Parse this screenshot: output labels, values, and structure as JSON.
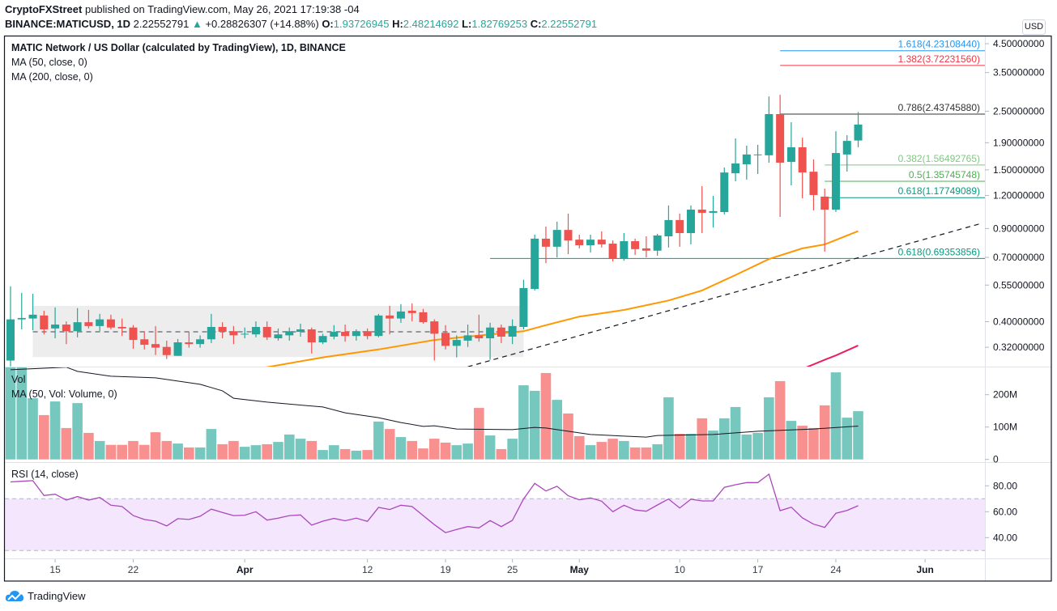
{
  "header": {
    "author": "CryptoFXStreet",
    "published": " published on TradingView.com, May 26, 2021 17:19:38 -04",
    "symbol": "BINANCE:MATICUSD, 1D",
    "last": "2.22552791",
    "change_icon": "triangle-up-icon",
    "change": "+0.28826307 (+14.88%)",
    "o_label": "O:",
    "o": "1.93726945",
    "h_label": "H:",
    "h": "2.48214692",
    "l_label": "L:",
    "l": "1.82769253",
    "c_label": "C:",
    "c": "2.22552791"
  },
  "legend": {
    "title": "MATIC Network / US Dollar (calculated by TradingView), 1D, BINANCE",
    "ma50": "MA (50, close, 0)",
    "ma200": "MA (200, close, 0)",
    "vol": "Vol",
    "vol_ma": "MA (50, Vol: Volume, 0)",
    "rsi": "RSI (14, close)"
  },
  "currency_badge": "USD",
  "branding": "TradingView",
  "colors": {
    "up": "#26a69a",
    "down": "#ef5350",
    "vol_up": "#76c7be",
    "vol_down": "#f7908e",
    "ma50": "#ff9800",
    "ma200": "#e91e63",
    "vol_ma": "#131722",
    "rsi": "#ab47bc",
    "rsi_band": "#f3e6fd"
  },
  "chart_data": {
    "type": "candlestick",
    "price_scale": "log",
    "columns": [
      "date",
      "open",
      "high",
      "low",
      "close",
      "volume_M",
      "rsi"
    ],
    "candles": [
      [
        "2021-03-11",
        0.285,
        0.544,
        0.271,
        0.408,
        290,
        83
      ],
      [
        "2021-03-12",
        0.408,
        0.514,
        0.374,
        0.413,
        286,
        83.5
      ],
      [
        "2021-03-13",
        0.411,
        0.51,
        0.371,
        0.425,
        189,
        84
      ],
      [
        "2021-03-14",
        0.422,
        0.44,
        0.358,
        0.374,
        137,
        72.5
      ],
      [
        "2021-03-15",
        0.377,
        0.453,
        0.346,
        0.39,
        179,
        73.5
      ],
      [
        "2021-03-16",
        0.39,
        0.401,
        0.329,
        0.368,
        97,
        69
      ],
      [
        "2021-03-17",
        0.368,
        0.45,
        0.349,
        0.398,
        174,
        71.7
      ],
      [
        "2021-03-18",
        0.398,
        0.443,
        0.377,
        0.385,
        82,
        69
      ],
      [
        "2021-03-19",
        0.385,
        0.428,
        0.368,
        0.408,
        57,
        71
      ],
      [
        "2021-03-20",
        0.408,
        0.425,
        0.374,
        0.38,
        45,
        65
      ],
      [
        "2021-03-21",
        0.382,
        0.411,
        0.353,
        0.377,
        45,
        64
      ],
      [
        "2021-03-22",
        0.38,
        0.388,
        0.316,
        0.341,
        57,
        57
      ],
      [
        "2021-03-23",
        0.343,
        0.368,
        0.314,
        0.327,
        45,
        54
      ],
      [
        "2021-03-24",
        0.329,
        0.385,
        0.299,
        0.319,
        84,
        52.7
      ],
      [
        "2021-03-25",
        0.321,
        0.339,
        0.289,
        0.299,
        57,
        49
      ],
      [
        "2021-03-26",
        0.297,
        0.344,
        0.297,
        0.334,
        49,
        54.6
      ],
      [
        "2021-03-27",
        0.334,
        0.366,
        0.319,
        0.329,
        37,
        54
      ],
      [
        "2021-03-28",
        0.329,
        0.355,
        0.319,
        0.343,
        37,
        56.5
      ],
      [
        "2021-03-29",
        0.343,
        0.428,
        0.332,
        0.382,
        94,
        62
      ],
      [
        "2021-03-30",
        0.382,
        0.398,
        0.346,
        0.366,
        47,
        59.4
      ],
      [
        "2021-03-31",
        0.368,
        0.385,
        0.329,
        0.355,
        57,
        57
      ],
      [
        "2021-04-01",
        0.358,
        0.38,
        0.346,
        0.36,
        39,
        57.3
      ],
      [
        "2021-04-02",
        0.358,
        0.401,
        0.349,
        0.382,
        44,
        60
      ],
      [
        "2021-04-03",
        0.382,
        0.401,
        0.341,
        0.349,
        47,
        53.5
      ],
      [
        "2021-04-04",
        0.346,
        0.377,
        0.339,
        0.358,
        54,
        55
      ],
      [
        "2021-04-05",
        0.355,
        0.38,
        0.339,
        0.368,
        77,
        57
      ],
      [
        "2021-04-06",
        0.366,
        0.393,
        0.351,
        0.374,
        64,
        57.5
      ],
      [
        "2021-04-07",
        0.374,
        0.38,
        0.303,
        0.334,
        57,
        49.6
      ],
      [
        "2021-04-08",
        0.334,
        0.36,
        0.329,
        0.353,
        29,
        52.7
      ],
      [
        "2021-04-09",
        0.351,
        0.388,
        0.343,
        0.366,
        44,
        54.8
      ],
      [
        "2021-04-10",
        0.366,
        0.39,
        0.336,
        0.353,
        32,
        53
      ],
      [
        "2021-04-11",
        0.353,
        0.374,
        0.339,
        0.368,
        27,
        55
      ],
      [
        "2021-04-12",
        0.368,
        0.377,
        0.343,
        0.353,
        29,
        52.5
      ],
      [
        "2021-04-13",
        0.353,
        0.428,
        0.349,
        0.422,
        117,
        63.3
      ],
      [
        "2021-04-14",
        0.422,
        0.459,
        0.358,
        0.411,
        94,
        61.7
      ],
      [
        "2021-04-15",
        0.411,
        0.466,
        0.396,
        0.437,
        69,
        65
      ],
      [
        "2021-04-16",
        0.44,
        0.469,
        0.401,
        0.431,
        57,
        64
      ],
      [
        "2021-04-17",
        0.434,
        0.447,
        0.393,
        0.398,
        34,
        57
      ],
      [
        "2021-04-18",
        0.401,
        0.408,
        0.285,
        0.36,
        64,
        50
      ],
      [
        "2021-04-19",
        0.363,
        0.388,
        0.314,
        0.324,
        52,
        43.8
      ],
      [
        "2021-04-20",
        0.324,
        0.355,
        0.293,
        0.341,
        44,
        46.3
      ],
      [
        "2021-04-21",
        0.339,
        0.39,
        0.321,
        0.355,
        49,
        48.5
      ],
      [
        "2021-04-22",
        0.355,
        0.425,
        0.336,
        0.346,
        159,
        47.5
      ],
      [
        "2021-04-23",
        0.346,
        0.396,
        0.287,
        0.38,
        74,
        53.1
      ],
      [
        "2021-04-24",
        0.38,
        0.39,
        0.332,
        0.351,
        32,
        48.5
      ],
      [
        "2021-04-25",
        0.351,
        0.408,
        0.329,
        0.385,
        64,
        53.3
      ],
      [
        "2021-04-26",
        0.382,
        0.576,
        0.374,
        0.536,
        229,
        69.8
      ],
      [
        "2021-04-27",
        0.532,
        0.853,
        0.525,
        0.824,
        212,
        81.9
      ],
      [
        "2021-04-28",
        0.824,
        0.915,
        0.666,
        0.768,
        267,
        76
      ],
      [
        "2021-04-29",
        0.768,
        0.955,
        0.7,
        0.889,
        184,
        79.6
      ],
      [
        "2021-04-30",
        0.889,
        1.025,
        0.72,
        0.811,
        142,
        72.3
      ],
      [
        "2021-05-01",
        0.817,
        0.853,
        0.757,
        0.778,
        72,
        69.2
      ],
      [
        "2021-05-02",
        0.778,
        0.853,
        0.731,
        0.817,
        44,
        70.6
      ],
      [
        "2021-05-03",
        0.817,
        0.878,
        0.763,
        0.784,
        54,
        68.1
      ],
      [
        "2021-05-04",
        0.789,
        0.811,
        0.676,
        0.695,
        64,
        60
      ],
      [
        "2021-05-05",
        0.695,
        0.865,
        0.68,
        0.806,
        57,
        65
      ],
      [
        "2021-05-06",
        0.806,
        0.824,
        0.715,
        0.752,
        37,
        61.3
      ],
      [
        "2021-05-07",
        0.757,
        0.841,
        0.7,
        0.742,
        37,
        60.4
      ],
      [
        "2021-05-08",
        0.742,
        0.859,
        0.71,
        0.847,
        47,
        65.2
      ],
      [
        "2021-05-09",
        0.841,
        1.1,
        0.763,
        0.969,
        192,
        69.8
      ],
      [
        "2021-05-10",
        0.969,
        1.025,
        0.768,
        0.865,
        79,
        62.9
      ],
      [
        "2021-05-11",
        0.865,
        1.1,
        0.784,
        1.061,
        79,
        69.6
      ],
      [
        "2021-05-12",
        1.061,
        1.302,
        0.865,
        1.032,
        127,
        68.3
      ],
      [
        "2021-05-13",
        1.032,
        1.196,
        0.908,
        1.047,
        89,
        68.3
      ],
      [
        "2021-05-14",
        1.039,
        1.531,
        1.018,
        1.466,
        127,
        78.8
      ],
      [
        "2021-05-15",
        1.456,
        1.972,
        1.358,
        1.586,
        162,
        80.8
      ],
      [
        "2021-05-16",
        1.575,
        1.852,
        1.378,
        1.715,
        77,
        82.5
      ],
      [
        "2021-05-17",
        1.703,
        1.865,
        1.447,
        1.715,
        82,
        82.5
      ],
      [
        "2021-05-18",
        1.703,
        2.843,
        1.597,
        2.438,
        192,
        89
      ],
      [
        "2021-05-19",
        2.438,
        2.883,
        0.996,
        1.597,
        242,
        60.8
      ],
      [
        "2021-05-20",
        1.608,
        2.271,
        1.311,
        1.826,
        119,
        63.5
      ],
      [
        "2021-05-21",
        1.826,
        1.985,
        1.171,
        1.466,
        104,
        55.2
      ],
      [
        "2021-05-22",
        1.476,
        1.643,
        1.054,
        1.205,
        97,
        50.4
      ],
      [
        "2021-05-23",
        1.188,
        1.274,
        0.736,
        1.061,
        167,
        47.9
      ],
      [
        "2021-05-24",
        1.061,
        2.1,
        1.039,
        1.737,
        269,
        58.8
      ],
      [
        "2021-05-25",
        1.715,
        2.028,
        1.478,
        1.93,
        129,
        61
      ],
      [
        "2021-05-26",
        1.937,
        2.482,
        1.828,
        2.226,
        149,
        64.6
      ]
    ],
    "ma50": [
      [
        "2021-04-01",
        0.262
      ],
      [
        "2021-04-03",
        0.269
      ],
      [
        "2021-04-08",
        0.293
      ],
      [
        "2021-04-13",
        0.314
      ],
      [
        "2021-04-18",
        0.341
      ],
      [
        "2021-04-23",
        0.358
      ],
      [
        "2021-04-26",
        0.368
      ],
      [
        "2021-04-28",
        0.388
      ],
      [
        "2021-05-01",
        0.418
      ],
      [
        "2021-05-05",
        0.443
      ],
      [
        "2021-05-09",
        0.481
      ],
      [
        "2021-05-12",
        0.525
      ],
      [
        "2021-05-15",
        0.6
      ],
      [
        "2021-05-18",
        0.69
      ],
      [
        "2021-05-21",
        0.757
      ],
      [
        "2021-05-23",
        0.784
      ],
      [
        "2021-05-26",
        0.88
      ]
    ],
    "ma200": [
      [
        "2021-05-20",
        0.258
      ],
      [
        "2021-05-21",
        0.265
      ],
      [
        "2021-05-23",
        0.287
      ],
      [
        "2021-05-24",
        0.298
      ],
      [
        "2021-05-26",
        0.325
      ]
    ],
    "vol_ma": [
      [
        "2021-03-11",
        277
      ],
      [
        "2021-03-16",
        285
      ],
      [
        "2021-03-17",
        272
      ],
      [
        "2021-03-20",
        257
      ],
      [
        "2021-03-24",
        252
      ],
      [
        "2021-03-28",
        232
      ],
      [
        "2021-03-30",
        212
      ],
      [
        "2021-03-31",
        189
      ],
      [
        "2021-04-03",
        177
      ],
      [
        "2021-04-08",
        162
      ],
      [
        "2021-04-10",
        144
      ],
      [
        "2021-04-13",
        129
      ],
      [
        "2021-04-15",
        114
      ],
      [
        "2021-04-17",
        102
      ],
      [
        "2021-04-18",
        104
      ],
      [
        "2021-04-20",
        94
      ],
      [
        "2021-04-25",
        92
      ],
      [
        "2021-04-27",
        99
      ],
      [
        "2021-04-28",
        97
      ],
      [
        "2021-04-30",
        87
      ],
      [
        "2021-05-02",
        77
      ],
      [
        "2021-05-05",
        72
      ],
      [
        "2021-05-07",
        69
      ],
      [
        "2021-05-08",
        74
      ],
      [
        "2021-05-13",
        77
      ],
      [
        "2021-05-17",
        87
      ],
      [
        "2021-05-22",
        94
      ],
      [
        "2021-05-26",
        103
      ]
    ],
    "consolidation_box": {
      "from": "2021-03-13",
      "to": "2021-04-26",
      "top": 0.459,
      "bottom": 0.294,
      "mid": 0.366
    },
    "trendline": [
      [
        "2021-04-21",
        0.27
      ],
      [
        "2021-06-06",
        0.94
      ]
    ],
    "fib_levels": [
      {
        "label": "1.618(4.23108440)",
        "value": 4.2310844,
        "from": "2021-05-19",
        "color": "#2196f3"
      },
      {
        "label": "1.382(3.72231560)",
        "value": 3.7223156,
        "from": "2021-05-19",
        "color": "#f23645"
      },
      {
        "label": "0.786(2.43745880)",
        "value": 2.4374588,
        "from": "2021-05-19",
        "color": "#333333"
      },
      {
        "label": "0.382(1.56492765)",
        "value": 1.56492765,
        "from": "2021-05-23",
        "color": "#81c784"
      },
      {
        "label": "0.5(1.35745748)",
        "value": 1.35745748,
        "from": "2021-05-23",
        "color": "#4caf50"
      },
      {
        "label": "0.618(1.17749089)",
        "value": 1.17749089,
        "from": "2021-05-23",
        "color": "#089981"
      },
      {
        "label": "0.618(0.69353856)",
        "value": 0.69353856,
        "from": "2021-04-23",
        "color": "#089981"
      }
    ],
    "price_axis": [
      {
        "label": "4.50000000",
        "value": 4.5
      },
      {
        "label": "3.50000000",
        "value": 3.5
      },
      {
        "label": "2.50000000",
        "value": 2.5
      },
      {
        "label": "1.90000000",
        "value": 1.9
      },
      {
        "label": "1.50000000",
        "value": 1.5
      },
      {
        "label": "1.20000000",
        "value": 1.2
      },
      {
        "label": "0.90000000",
        "value": 0.9
      },
      {
        "label": "0.70000000",
        "value": 0.7
      },
      {
        "label": "0.55000000",
        "value": 0.55
      },
      {
        "label": "0.40000000",
        "value": 0.4
      },
      {
        "label": "0.32000000",
        "value": 0.32
      }
    ],
    "volume_axis": [
      {
        "label": "200M",
        "value": 200
      },
      {
        "label": "100M",
        "value": 100
      },
      {
        "label": "0",
        "value": 0
      }
    ],
    "rsi_axis": [
      {
        "label": "80.00",
        "value": 80
      },
      {
        "label": "60.00",
        "value": 60
      },
      {
        "label": "40.00",
        "value": 40
      }
    ],
    "rsi_bands": [
      70,
      30
    ],
    "time_axis": [
      {
        "label": "15",
        "date": "2021-03-15"
      },
      {
        "label": "22",
        "date": "2021-03-22"
      },
      {
        "label": "Apr",
        "date": "2021-04-01",
        "major": true
      },
      {
        "label": "12",
        "date": "2021-04-12"
      },
      {
        "label": "19",
        "date": "2021-04-19"
      },
      {
        "label": "25",
        "date": "2021-04-25"
      },
      {
        "label": "May",
        "date": "2021-05-01",
        "major": true
      },
      {
        "label": "10",
        "date": "2021-05-10"
      },
      {
        "label": "17",
        "date": "2021-05-17"
      },
      {
        "label": "24",
        "date": "2021-05-24"
      },
      {
        "label": "Jun",
        "date": "2021-06-01",
        "major": true
      }
    ]
  }
}
